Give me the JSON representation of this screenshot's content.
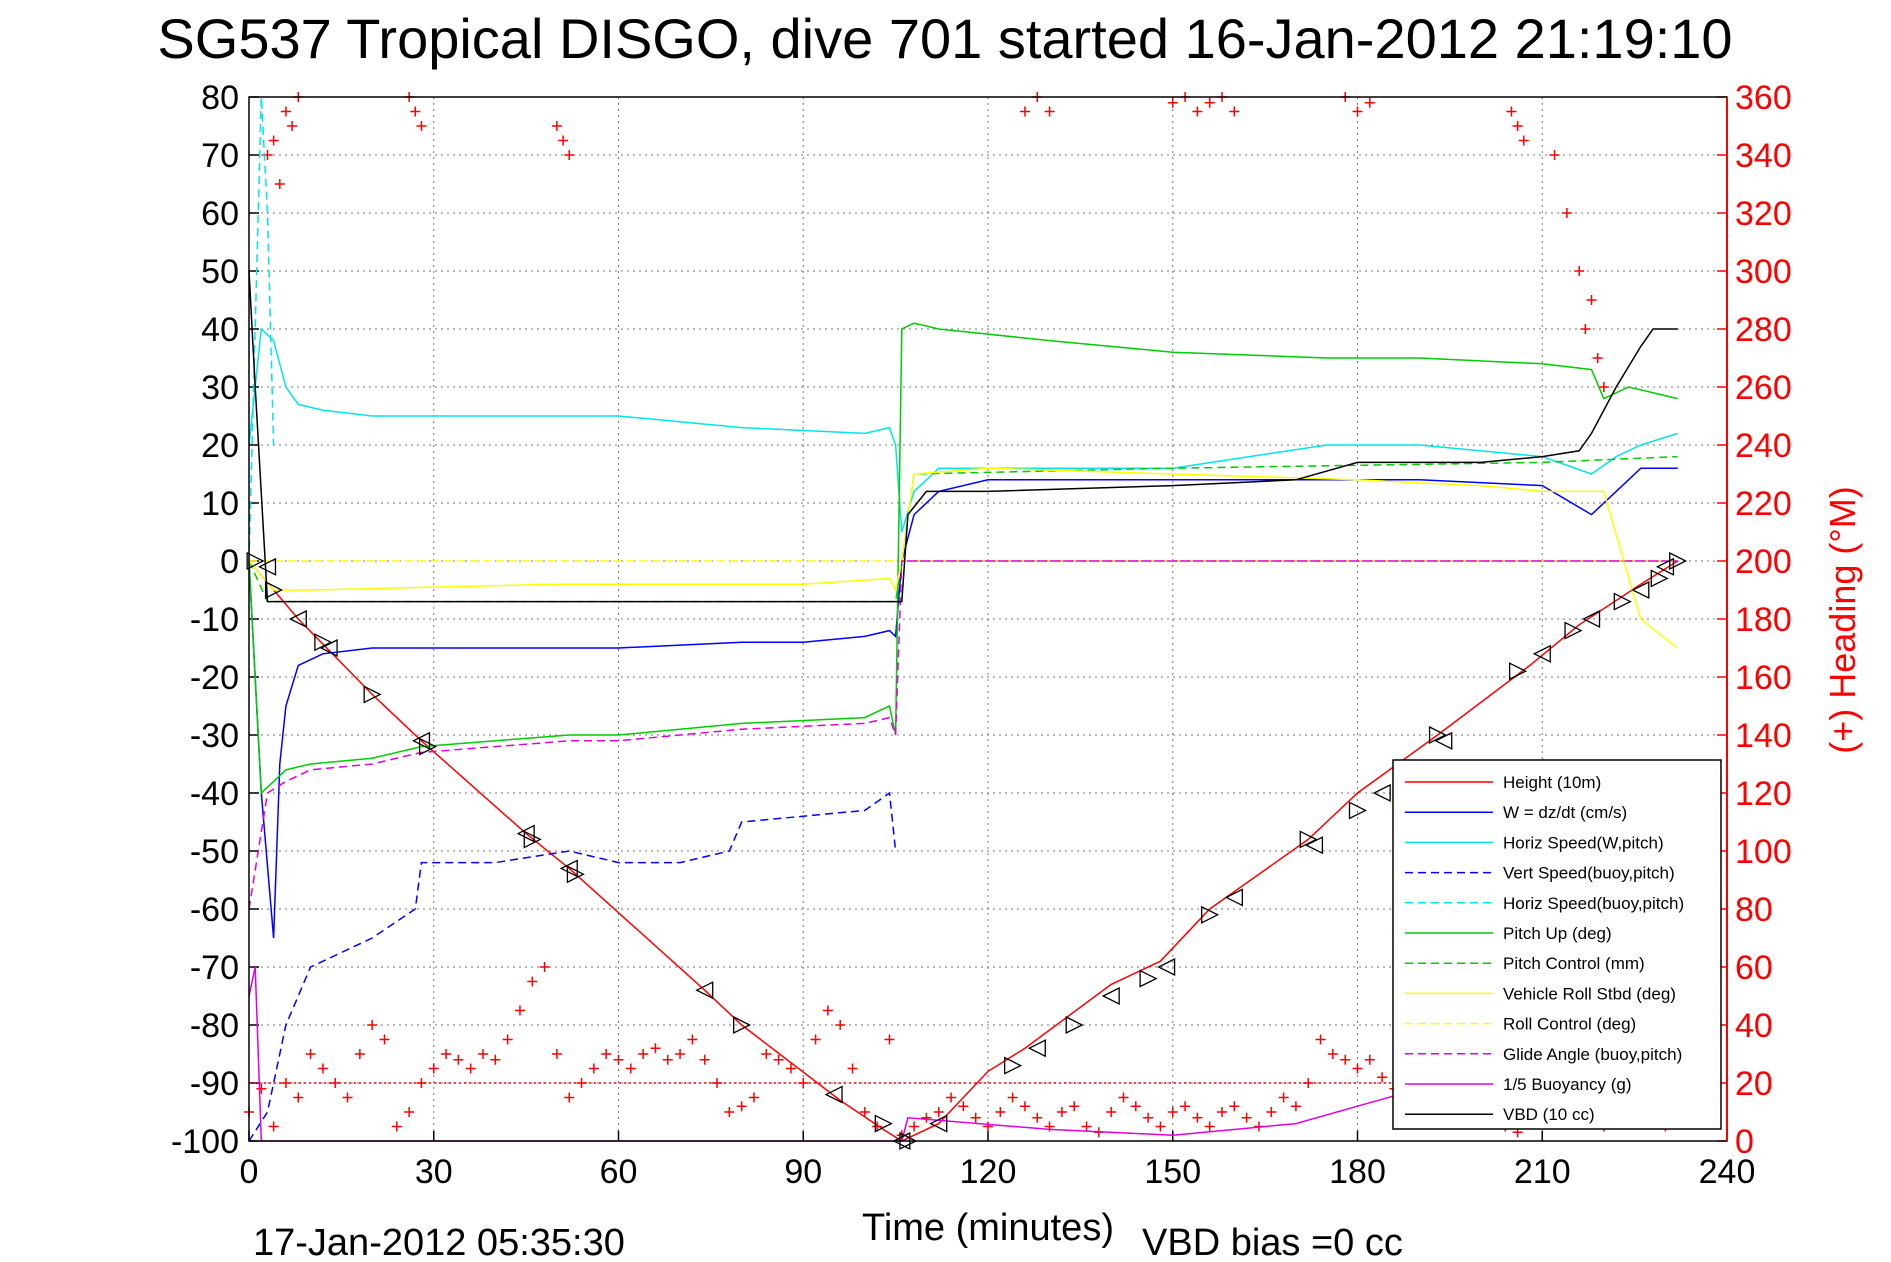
{
  "chart_data": {
    "type": "line",
    "title": "SG537 Tropical DISGO, dive 701 started 16-Jan-2012 21:19:10",
    "xlabel": "Time (minutes)",
    "ylabel_right": "(+) Heading (°M)",
    "footer_left": "17-Jan-2012 05:35:30",
    "footer_right": "VBD bias =0 cc",
    "xlim": [
      0,
      240
    ],
    "ylim_left": [
      -100,
      80
    ],
    "ylim_right": [
      0,
      360
    ],
    "xticks": [
      "0",
      "30",
      "60",
      "90",
      "120",
      "150",
      "180",
      "210",
      "240"
    ],
    "yticks_left": [
      "80",
      "70",
      "60",
      "50",
      "40",
      "30",
      "20",
      "10",
      "0",
      "-10",
      "-20",
      "-30",
      "-40",
      "-50",
      "-60",
      "-70",
      "-80",
      "-90",
      "-100"
    ],
    "yticks_right": [
      "360",
      "340",
      "320",
      "300",
      "280",
      "260",
      "240",
      "220",
      "200",
      "180",
      "160",
      "140",
      "120",
      "100",
      "80",
      "60",
      "40",
      "20",
      "0"
    ],
    "grid": true,
    "legend_position": "bottom-right",
    "colors": {
      "red": "#ff0000",
      "blue": "#0000ff",
      "cyan": "#00e5e5",
      "green": "#00cc00",
      "yellow": "#ffff00",
      "magenta": "#e000e0",
      "black": "#000000"
    },
    "series": [
      {
        "name": "Height (10m)",
        "color": "red",
        "dash": false,
        "x": [
          0,
          8,
          20,
          28,
          45,
          52,
          74,
          80,
          96,
          103,
          106,
          112,
          120,
          126,
          140,
          148,
          156,
          172,
          180,
          193,
          208,
          216,
          226,
          232
        ],
        "y": [
          0,
          -10,
          -23,
          -31,
          -47,
          -53,
          -74,
          -80,
          -93,
          -98,
          -100,
          -97,
          -88,
          -84,
          -73,
          -69,
          -60,
          -48,
          -40,
          -30,
          -18,
          -11,
          -4,
          0
        ]
      },
      {
        "name": "W = dz/dt (cm/s)",
        "color": "blue",
        "dash": false,
        "x": [
          0,
          2,
          4,
          5,
          6,
          8,
          12,
          20,
          28,
          40,
          52,
          60,
          80,
          90,
          100,
          104,
          105,
          106,
          108,
          112,
          120,
          150,
          175,
          190,
          210,
          218,
          222,
          226,
          232
        ],
        "y": [
          0,
          -40,
          -65,
          -35,
          -25,
          -18,
          -16,
          -15,
          -15,
          -15,
          -15,
          -15,
          -14,
          -14,
          -13,
          -12,
          -13,
          0,
          8,
          12,
          14,
          14,
          14,
          14,
          13,
          8,
          12,
          16,
          16
        ]
      },
      {
        "name": "Horiz Speed(W,pitch)",
        "color": "cyan",
        "dash": false,
        "x": [
          0,
          2,
          4,
          6,
          8,
          12,
          20,
          40,
          60,
          80,
          100,
          104,
          105,
          106,
          108,
          112,
          120,
          150,
          175,
          190,
          210,
          218,
          222,
          226,
          232
        ],
        "y": [
          20,
          40,
          38,
          30,
          27,
          26,
          25,
          25,
          25,
          23,
          22,
          23,
          20,
          5,
          12,
          16,
          16,
          16,
          20,
          20,
          18,
          15,
          18,
          20,
          22
        ]
      },
      {
        "name": "Vert Speed(buoy,pitch)",
        "color": "blue",
        "dash": true,
        "x": [
          0,
          3,
          6,
          10,
          20,
          27,
          28,
          40,
          52,
          60,
          70,
          78,
          80,
          90,
          100,
          104,
          105
        ],
        "y": [
          -100,
          -95,
          -80,
          -70,
          -65,
          -60,
          -52,
          -52,
          -50,
          -52,
          -52,
          -50,
          -45,
          -44,
          -43,
          -40,
          -50
        ]
      },
      {
        "name": "Horiz Speed(buoy,pitch)",
        "color": "cyan",
        "dash": true,
        "x": [
          0,
          2,
          3,
          4
        ],
        "y": [
          0,
          80,
          60,
          20
        ]
      },
      {
        "name": "Pitch Up (deg)",
        "color": "green",
        "dash": false,
        "x": [
          0,
          2,
          4,
          6,
          10,
          20,
          28,
          40,
          52,
          60,
          80,
          100,
          104,
          105,
          106,
          108,
          112,
          130,
          150,
          175,
          190,
          210,
          218,
          220,
          224,
          232
        ],
        "y": [
          0,
          -40,
          -38,
          -36,
          -35,
          -34,
          -32,
          -31,
          -30,
          -30,
          -28,
          -27,
          -25,
          -30,
          40,
          41,
          40,
          38,
          36,
          35,
          35,
          34,
          33,
          28,
          30,
          28
        ]
      },
      {
        "name": "Pitch Control (mm)",
        "color": "green",
        "dash": true,
        "x": [
          0,
          3,
          105,
          106,
          108,
          150,
          210,
          232
        ],
        "y": [
          0,
          -7,
          -7,
          0,
          15,
          16,
          17,
          18
        ]
      },
      {
        "name": "Vehicle Roll Stbd (deg)",
        "color": "yellow",
        "dash": false,
        "x": [
          0,
          4,
          10,
          50,
          90,
          104,
          105,
          106,
          108,
          120,
          150,
          180,
          200,
          210,
          220,
          226,
          232
        ],
        "y": [
          0,
          -5,
          -5,
          -4,
          -4,
          -3,
          -5,
          0,
          15,
          16,
          15,
          14,
          13,
          12,
          12,
          -10,
          -15
        ]
      },
      {
        "name": "Roll Control (deg)",
        "color": "yellow",
        "dash": true,
        "x": [
          0,
          105,
          106,
          232
        ],
        "y": [
          0,
          0,
          0,
          0
        ]
      },
      {
        "name": "Glide Angle (buoy,pitch)",
        "color": "magenta",
        "dash": true,
        "x": [
          0,
          3,
          6,
          10,
          20,
          28,
          40,
          52,
          60,
          80,
          100,
          104,
          105,
          106,
          232
        ],
        "y": [
          -60,
          -40,
          -38,
          -36,
          -35,
          -33,
          -32,
          -31,
          -31,
          -29,
          -28,
          -27,
          -30,
          0,
          0
        ]
      },
      {
        "name": "1/5 Buoyancy (g)",
        "color": "magenta",
        "dash": false,
        "x": [
          0,
          1,
          2,
          106,
          107,
          130,
          150,
          170,
          180,
          190,
          200,
          210,
          222
        ],
        "y": [
          -75,
          -70,
          -100,
          -100,
          -96,
          -98,
          -99,
          -97,
          -94,
          -91,
          -89,
          -88,
          -86
        ]
      },
      {
        "name": "VBD (10 cc)",
        "color": "black",
        "dash": false,
        "x": [
          0,
          1,
          3,
          106,
          107,
          110,
          120,
          150,
          170,
          180,
          190,
          200,
          210,
          216,
          218,
          222,
          226,
          228,
          232
        ],
        "y": [
          50,
          30,
          -7,
          -7,
          8,
          12,
          12,
          13,
          14,
          17,
          17,
          17,
          18,
          19,
          22,
          30,
          37,
          40,
          40
        ]
      }
    ],
    "extra_lines": [
      {
        "color": "red",
        "dash": "dotted",
        "y": -90,
        "x": [
          0,
          232
        ]
      },
      {
        "color": "magenta",
        "dash": "dashed",
        "y": 0,
        "x": [
          106,
          232
        ]
      }
    ],
    "heading_points": {
      "name": "(+) Heading (°M)",
      "color": "red",
      "marker": "+",
      "axis": "right",
      "x": [
        0,
        2,
        4,
        6,
        8,
        10,
        12,
        14,
        16,
        18,
        20,
        22,
        24,
        26,
        28,
        30,
        32,
        34,
        36,
        38,
        40,
        42,
        44,
        46,
        48,
        50,
        52,
        54,
        56,
        58,
        60,
        62,
        64,
        66,
        68,
        70,
        72,
        74,
        76,
        78,
        80,
        82,
        84,
        86,
        88,
        90,
        92,
        94,
        96,
        98,
        100,
        102,
        104,
        106,
        108,
        110,
        112,
        114,
        116,
        118,
        120,
        122,
        124,
        126,
        128,
        130,
        132,
        134,
        136,
        138,
        140,
        142,
        144,
        146,
        148,
        150,
        152,
        154,
        156,
        158,
        160,
        162,
        164,
        166,
        168,
        170,
        172,
        174,
        176,
        178,
        180,
        182,
        184,
        186,
        188,
        190,
        192,
        194,
        196,
        198,
        200,
        202,
        204,
        206,
        208,
        210,
        212,
        214,
        216,
        218,
        220,
        222,
        224,
        226,
        228,
        230,
        3,
        4,
        5,
        6,
        7,
        8,
        26,
        27,
        28,
        50,
        51,
        52,
        126,
        128,
        130,
        150,
        152,
        154,
        156,
        158,
        160,
        178,
        180,
        182,
        205,
        206,
        207,
        212,
        214,
        216,
        217,
        218,
        219,
        220
      ],
      "y": [
        10,
        18,
        5,
        20,
        15,
        30,
        25,
        20,
        15,
        30,
        40,
        35,
        5,
        10,
        20,
        25,
        30,
        28,
        25,
        30,
        28,
        35,
        45,
        55,
        60,
        30,
        15,
        20,
        25,
        30,
        28,
        25,
        30,
        32,
        28,
        30,
        35,
        28,
        20,
        10,
        12,
        15,
        30,
        28,
        25,
        20,
        35,
        45,
        40,
        25,
        10,
        5,
        35,
        2,
        5,
        8,
        10,
        15,
        12,
        8,
        5,
        10,
        15,
        12,
        8,
        5,
        10,
        12,
        5,
        3,
        10,
        15,
        12,
        8,
        5,
        10,
        12,
        8,
        5,
        10,
        12,
        8,
        5,
        10,
        15,
        12,
        20,
        35,
        30,
        28,
        25,
        28,
        22,
        18,
        15,
        20,
        25,
        20,
        18,
        15,
        10,
        8,
        5,
        3,
        8,
        15,
        20,
        18,
        22,
        10,
        5,
        8,
        12,
        15,
        10,
        5,
        340,
        345,
        330,
        355,
        350,
        360,
        360,
        355,
        350,
        350,
        345,
        340,
        355,
        360,
        355,
        358,
        360,
        355,
        358,
        360,
        355,
        360,
        355,
        358,
        355,
        350,
        345,
        340,
        320,
        300,
        280,
        290,
        270,
        260
      ]
    },
    "profile_markers": {
      "marker": "triangle",
      "color": "black",
      "x": [
        1,
        3,
        4,
        8,
        12,
        13,
        20,
        28,
        29,
        45,
        46,
        52,
        53,
        74,
        80,
        95,
        103,
        106,
        107,
        112,
        124,
        128,
        134,
        140,
        146,
        149,
        156,
        160,
        172,
        173,
        180,
        184,
        193,
        194,
        206,
        210,
        215,
        218,
        223,
        226,
        229,
        230,
        232
      ],
      "y": [
        0,
        -1,
        -5,
        -10,
        -14,
        -15,
        -23,
        -31,
        -32,
        -47,
        -48,
        -53,
        -54,
        -74,
        -80,
        -92,
        -97,
        -100,
        -100,
        -97,
        -87,
        -84,
        -80,
        -75,
        -72,
        -70,
        -61,
        -58,
        -48,
        -49,
        -43,
        -40,
        -30,
        -31,
        -19,
        -16,
        -12,
        -10,
        -7,
        -5,
        -3,
        -1,
        0
      ]
    }
  }
}
